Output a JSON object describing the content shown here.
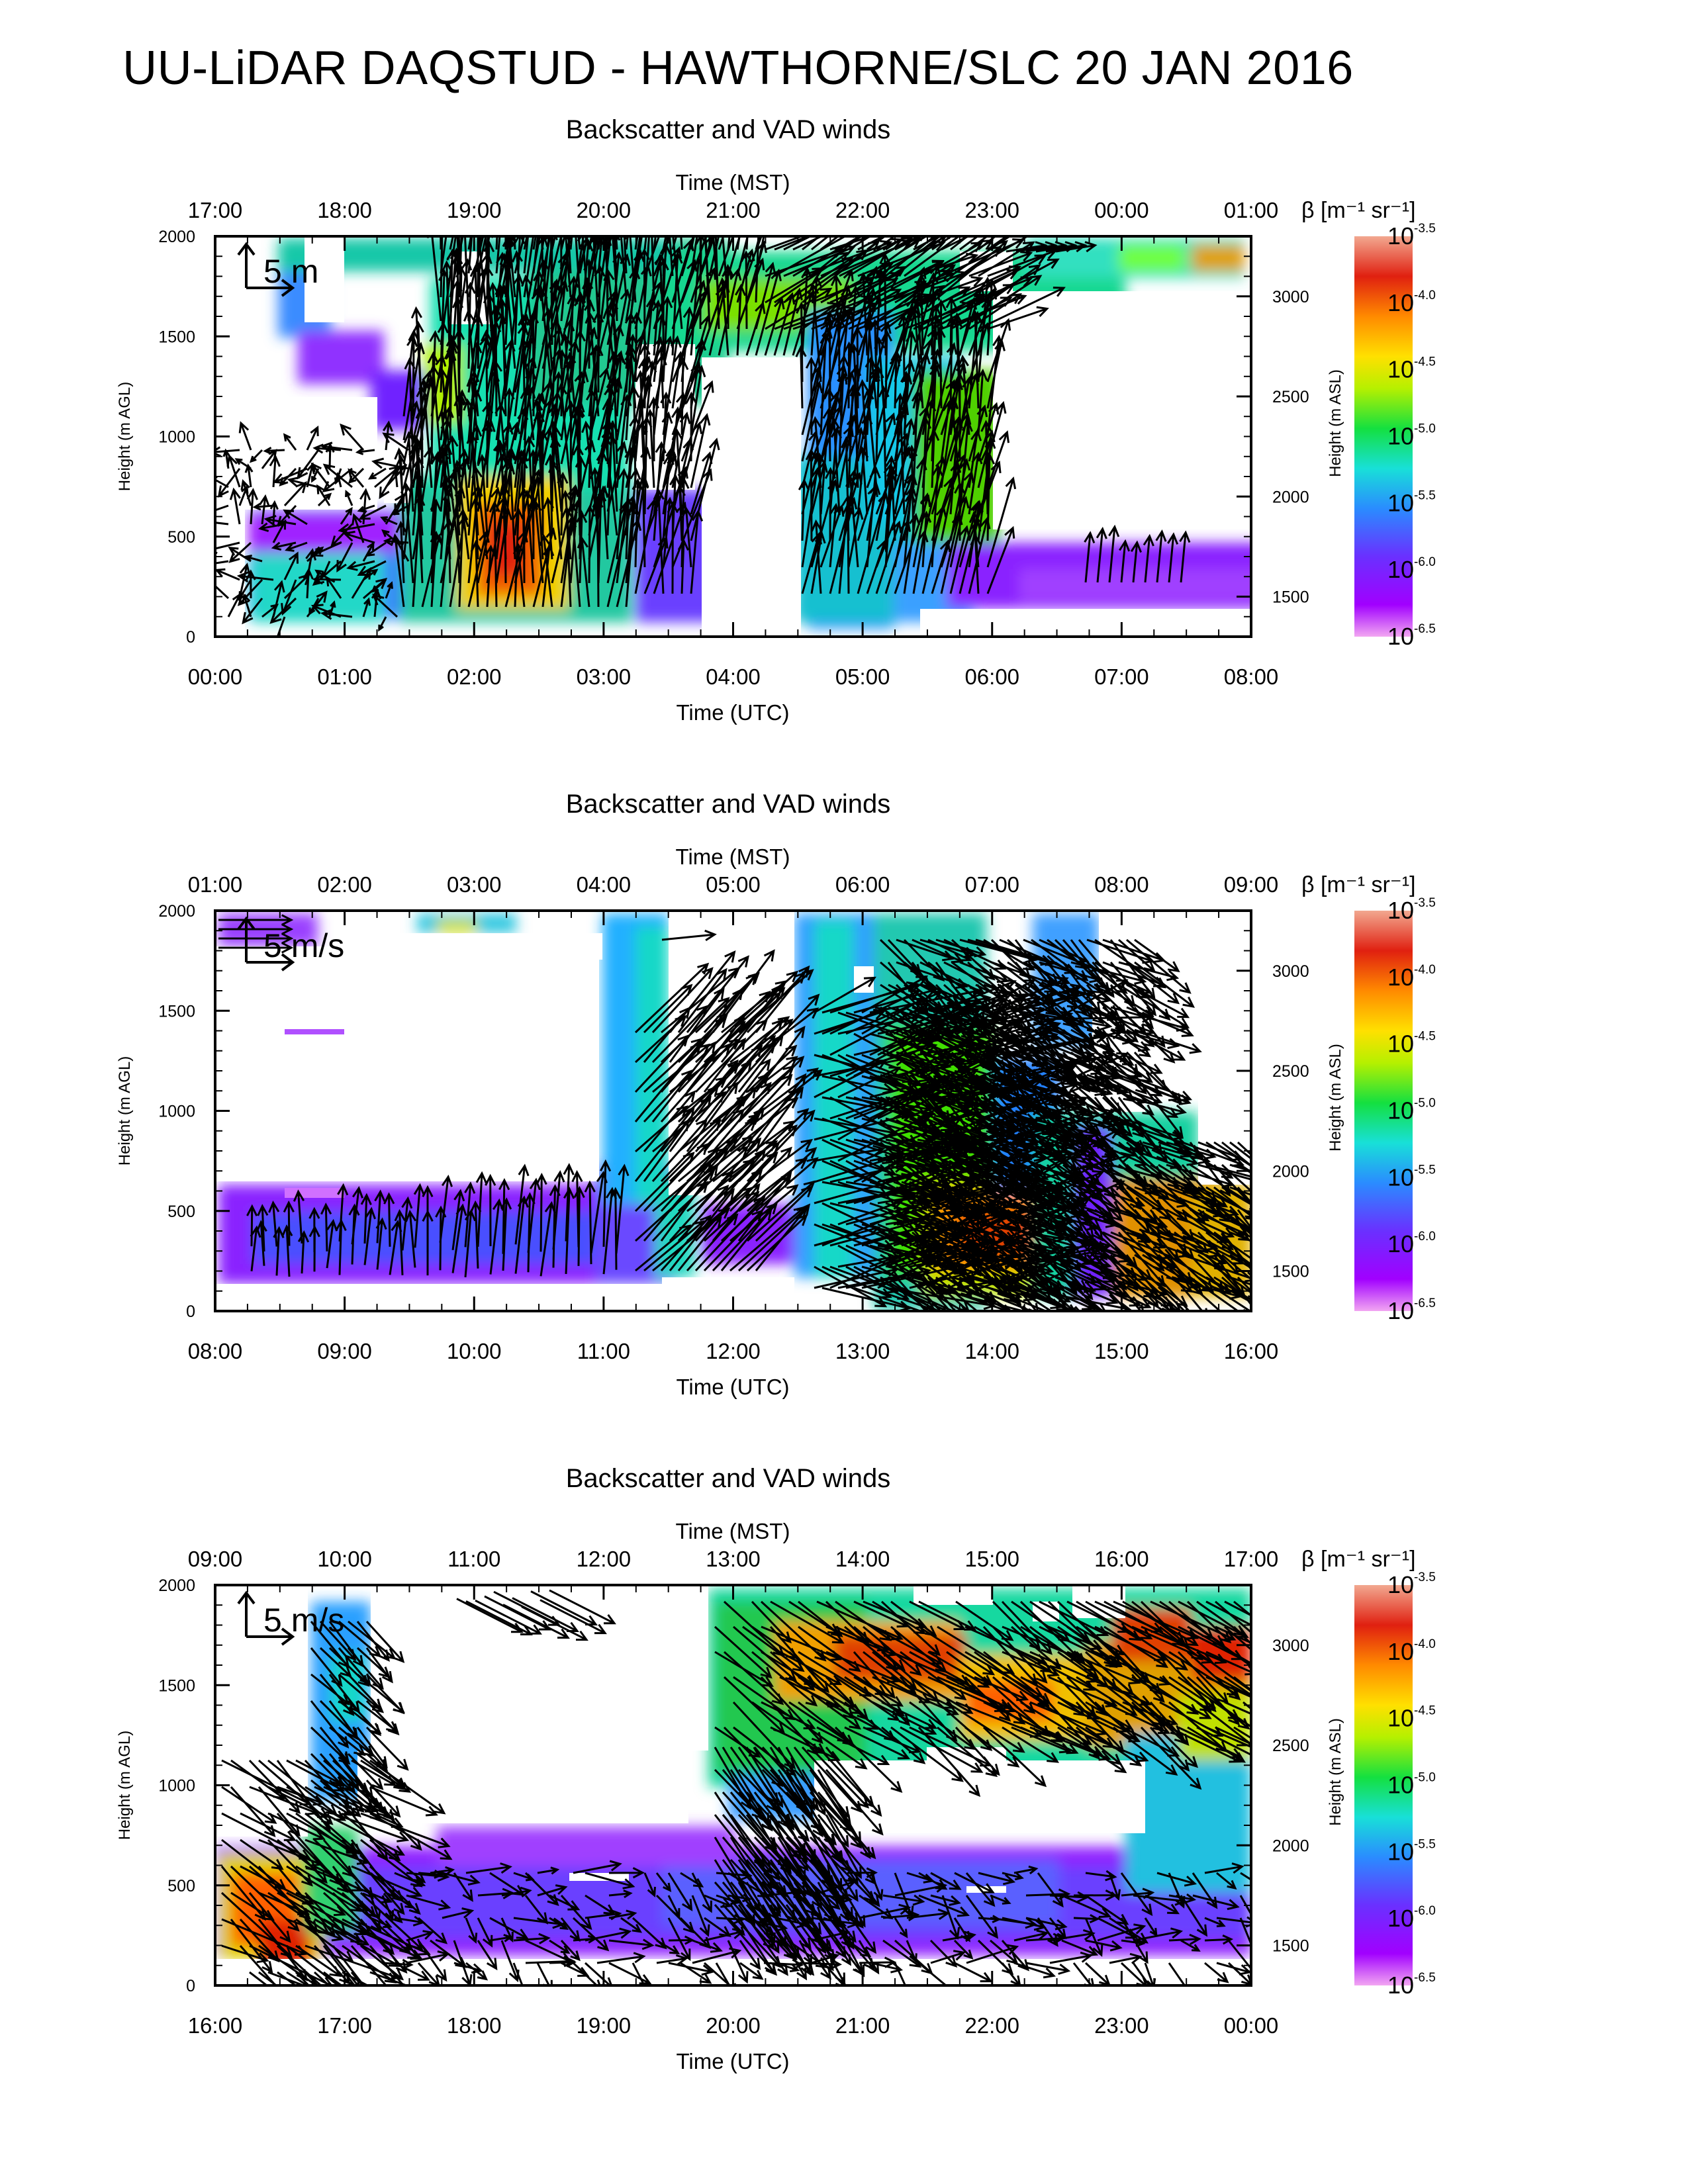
{
  "page": {
    "title": "UU-LiDAR DAQSTUD - HAWTHORNE/SLC 20 JAN 2016"
  },
  "chart_data": [
    {
      "type": "heatmap",
      "title": "Backscatter and VAD winds",
      "top_axis_label": "Time (MST)",
      "top_ticks": [
        "17:00",
        "18:00",
        "19:00",
        "20:00",
        "21:00",
        "22:00",
        "23:00",
        "00:00",
        "01:00"
      ],
      "xlabel": "Time (UTC)",
      "x_ticks": [
        "00:00",
        "01:00",
        "02:00",
        "03:00",
        "04:00",
        "05:00",
        "06:00",
        "07:00",
        "08:00"
      ],
      "ylabel": "Height (m AGL)",
      "y_ticks": [
        "0",
        "500",
        "1000",
        "1500",
        "2000"
      ],
      "ylim": [
        0,
        2000
      ],
      "right_axis_label": "Height (m ASL)",
      "right_ticks": [
        "1500",
        "2000",
        "2500",
        "3000"
      ],
      "colorbar_label": "β [m⁻¹ sr⁻¹]",
      "colorbar_exponents": [
        "-3.5",
        "-4.0",
        "-4.5",
        "-5.0",
        "-5.5",
        "-6.0",
        "-6.5"
      ],
      "scale_label": "5 m",
      "arrow_direction": "mostly northward / north-northeast",
      "cloud_note": "strong backscatter near 02:00-02:30 UTC below 700 m"
    },
    {
      "type": "heatmap",
      "title": "Backscatter and VAD winds",
      "top_axis_label": "Time (MST)",
      "top_ticks": [
        "01:00",
        "02:00",
        "03:00",
        "04:00",
        "05:00",
        "06:00",
        "07:00",
        "08:00",
        "09:00"
      ],
      "xlabel": "Time (UTC)",
      "x_ticks": [
        "08:00",
        "09:00",
        "10:00",
        "11:00",
        "12:00",
        "13:00",
        "14:00",
        "15:00",
        "16:00"
      ],
      "ylabel": "Height (m AGL)",
      "y_ticks": [
        "0",
        "500",
        "1000",
        "1500",
        "2000"
      ],
      "ylim": [
        0,
        2000
      ],
      "right_axis_label": "Height (m ASL)",
      "right_ticks": [
        "1500",
        "2000",
        "2500",
        "3000"
      ],
      "colorbar_label": "β [m⁻¹ sr⁻¹]",
      "colorbar_exponents": [
        "-3.5",
        "-4.0",
        "-4.5",
        "-5.0",
        "-5.5",
        "-6.0",
        "-6.5"
      ],
      "scale_label": "5 m/s",
      "arrow_direction": "mostly eastward / southeastward aloft",
      "cloud_note": "strong backscatter near 13:30-15:30 UTC below 600 m"
    },
    {
      "type": "heatmap",
      "title": "Backscatter and VAD winds",
      "top_axis_label": "Time (MST)",
      "top_ticks": [
        "09:00",
        "10:00",
        "11:00",
        "12:00",
        "13:00",
        "14:00",
        "15:00",
        "16:00",
        "17:00"
      ],
      "xlabel": "Time (UTC)",
      "x_ticks": [
        "16:00",
        "17:00",
        "18:00",
        "19:00",
        "20:00",
        "21:00",
        "22:00",
        "23:00",
        "00:00"
      ],
      "ylabel": "Height (m AGL)",
      "y_ticks": [
        "0",
        "500",
        "1000",
        "1500",
        "2000"
      ],
      "ylim": [
        0,
        2000
      ],
      "right_axis_label": "Height (m ASL)",
      "right_ticks": [
        "1500",
        "2000",
        "2500",
        "3000"
      ],
      "colorbar_label": "β [m⁻¹ sr⁻¹]",
      "colorbar_exponents": [
        "-3.5",
        "-4.0",
        "-4.5",
        "-5.0",
        "-5.5",
        "-6.0",
        "-6.5"
      ],
      "scale_label": "5 m/s",
      "arrow_direction": "mostly southeastward",
      "cloud_note": "elevated layer 1500-2000 m after 20:00 UTC; strong near surface 16:00-17:00 UTC"
    }
  ]
}
